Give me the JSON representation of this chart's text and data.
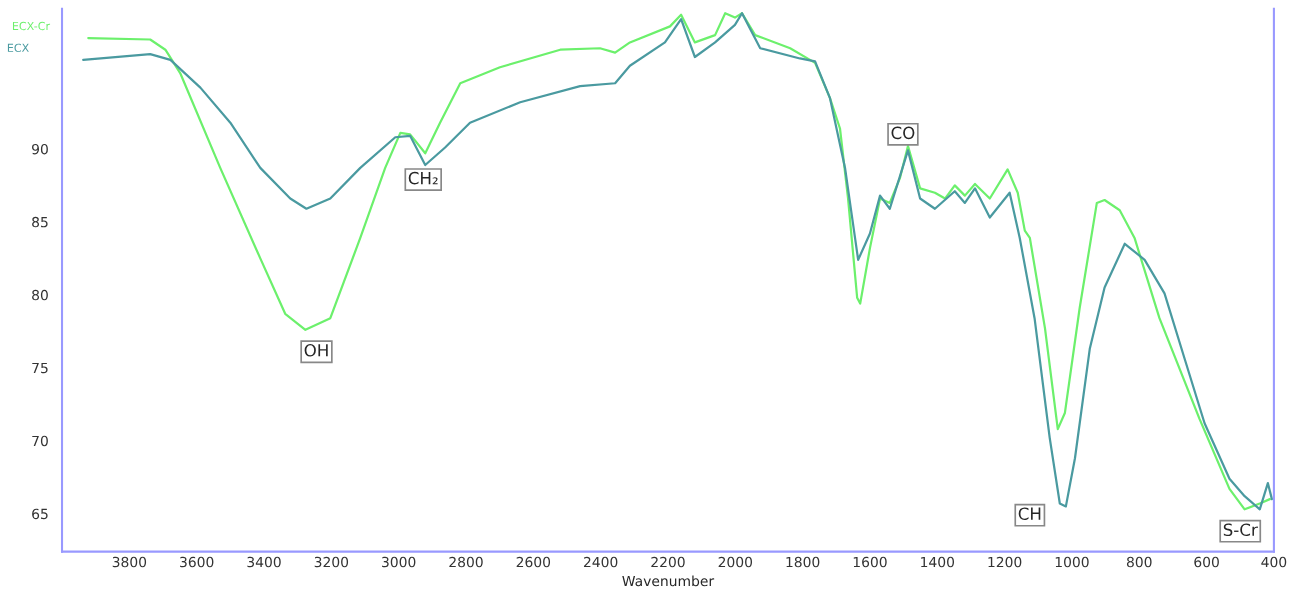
{
  "chart_data": {
    "type": "line",
    "xlabel": "Wavenumber",
    "xlim": [
      4000,
      400
    ],
    "ylim": [
      62.4,
      99.6
    ],
    "xticks": [
      3800,
      3600,
      3400,
      3200,
      3000,
      2800,
      2600,
      2400,
      2200,
      2000,
      1800,
      1600,
      1400,
      1200,
      1000,
      800,
      600,
      400
    ],
    "yticks": [
      65,
      70,
      75,
      80,
      85,
      90
    ],
    "grid": false,
    "legend": false,
    "marker": "none",
    "line_style": "solid",
    "series": [
      {
        "name": "ECX-Cr",
        "color": "#6cf06c",
        "x": [
          3922,
          3738,
          3693,
          3649,
          3530,
          3411,
          3337,
          3277,
          3203,
          3114,
          3040,
          2995,
          2966,
          2921,
          2877,
          2817,
          2699,
          2520,
          2402,
          2357,
          2313,
          2194,
          2161,
          2120,
          2060,
          2030,
          2001,
          1980,
          1941,
          1837,
          1763,
          1719,
          1689,
          1665,
          1638,
          1629,
          1600,
          1570,
          1541,
          1511,
          1487,
          1451,
          1407,
          1377,
          1348,
          1318,
          1288,
          1244,
          1191,
          1161,
          1140,
          1125,
          1080,
          1042,
          1021,
          977,
          926,
          903,
          858,
          814,
          740,
          621,
          532,
          487,
          442,
          412
        ],
        "values": [
          97.6,
          97.5,
          96.8,
          95.2,
          88.7,
          82.5,
          78.7,
          77.6,
          78.4,
          83.9,
          88.7,
          91.1,
          91.0,
          89.7,
          91.8,
          94.5,
          95.6,
          96.8,
          96.9,
          96.6,
          97.3,
          98.4,
          99.2,
          97.3,
          97.8,
          99.3,
          99.0,
          99.3,
          97.8,
          96.9,
          95.9,
          93.5,
          91.4,
          86.6,
          79.8,
          79.4,
          83.2,
          86.6,
          86.3,
          88.0,
          90.2,
          87.3,
          87.0,
          86.6,
          87.5,
          86.8,
          87.6,
          86.6,
          88.6,
          87.0,
          84.4,
          83.9,
          77.7,
          70.8,
          71.9,
          79.1,
          86.3,
          86.5,
          85.8,
          83.9,
          78.4,
          71.5,
          66.7,
          65.3,
          65.7,
          66.0
        ]
      },
      {
        "name": "ECX",
        "color": "#4a9aa0",
        "x": [
          3937,
          3738,
          3678,
          3589,
          3500,
          3411,
          3322,
          3274,
          3203,
          3114,
          3010,
          2966,
          2921,
          2862,
          2788,
          2639,
          2461,
          2357,
          2313,
          2209,
          2161,
          2120,
          2060,
          2001,
          1980,
          1926,
          1808,
          1763,
          1719,
          1674,
          1635,
          1600,
          1570,
          1541,
          1487,
          1451,
          1407,
          1348,
          1318,
          1288,
          1244,
          1185,
          1155,
          1111,
          1066,
          1036,
          1018,
          991,
          947,
          903,
          843,
          784,
          725,
          665,
          606,
          532,
          487,
          442,
          418,
          406
        ],
        "values": [
          96.1,
          96.5,
          96.1,
          94.2,
          91.8,
          88.7,
          86.6,
          85.9,
          86.6,
          88.7,
          90.8,
          90.9,
          88.9,
          90.1,
          91.8,
          93.2,
          94.3,
          94.5,
          95.7,
          97.3,
          98.9,
          96.3,
          97.3,
          98.5,
          99.3,
          96.9,
          96.2,
          96.0,
          93.5,
          88.7,
          82.4,
          84.2,
          86.8,
          85.9,
          89.9,
          86.6,
          85.9,
          87.1,
          86.3,
          87.3,
          85.3,
          87.0,
          83.9,
          78.4,
          70.2,
          65.7,
          65.5,
          68.8,
          76.3,
          80.5,
          83.5,
          82.4,
          80.1,
          75.6,
          71.2,
          67.4,
          66.2,
          65.3,
          67.1,
          66.0
        ]
      }
    ],
    "annotations": [
      {
        "text": "OH",
        "x": 3244,
        "y": 76.1
      },
      {
        "text": "CH₂",
        "x": 2927,
        "y": 87.9
      },
      {
        "text": "CO",
        "x": 1502,
        "y": 91.0
      },
      {
        "text": "CH",
        "x": 1125,
        "y": 64.9
      },
      {
        "text": "S-Cr",
        "x": 500,
        "y": 63.8
      }
    ]
  }
}
